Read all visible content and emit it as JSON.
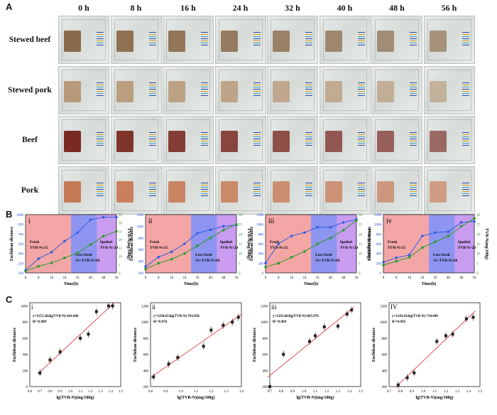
{
  "panel_a": {
    "letter": "A",
    "time_labels": [
      "0 h",
      "8 h",
      "16 h",
      "24 h",
      "32 h",
      "40 h",
      "48 h",
      "56 h"
    ],
    "row_labels": [
      "Stewed beef",
      "Stewed pork",
      "Beef",
      "Pork"
    ],
    "meat_colors": [
      "#8a6a4a",
      "#b89a7a",
      "#7a2a22",
      "#c77a55"
    ]
  },
  "panel_b": {
    "letter": "B"
  },
  "panel_c": {
    "letter": "C"
  },
  "chart_data": [
    {
      "type": "line",
      "panel": "B-i",
      "roman": "i",
      "xlabel": "Time(h)",
      "ylabel": "Euclidean distance",
      "ylabel2": "TVB-N(mg/100g)",
      "xticks": [
        "0",
        "8",
        "16",
        "24",
        "32",
        "40",
        "48",
        "56"
      ],
      "yticks": [
        "100",
        "250",
        "400",
        "550",
        "700",
        "850",
        "1000"
      ],
      "y2ticks": [
        "0",
        "5",
        "10",
        "15",
        "20",
        "25",
        "30",
        "35"
      ],
      "x": [
        0,
        8,
        16,
        24,
        32,
        40,
        48,
        56
      ],
      "series": [
        {
          "values": [
            140,
            320,
            420,
            590,
            720,
            920,
            960,
            960
          ]
        },
        {
          "values": [
            1,
            4,
            6,
            9,
            12,
            17,
            22,
            25
          ]
        }
      ],
      "zones": [
        "Fresh\nTVB-N≤15",
        "Less fresh\n15<TVB-N≤20",
        "Spoiled\nTVB-N>20"
      ]
    },
    {
      "type": "line",
      "panel": "B-ii",
      "roman": "ii",
      "xlabel": "Time(h)",
      "ylabel": "Euclidean distance",
      "ylabel2": "TVB-N(mg/100g)",
      "xticks": [
        "0",
        "8",
        "16",
        "24",
        "32",
        "40",
        "48",
        "56"
      ],
      "yticks": [
        "200",
        "400",
        "600",
        "800",
        "1000",
        "1200"
      ],
      "y2ticks": [
        "0",
        "5",
        "10",
        "15",
        "20",
        "25",
        "30"
      ],
      "x": [
        0,
        8,
        16,
        24,
        32,
        40,
        48,
        56
      ],
      "series": [
        {
          "values": [
            310,
            470,
            560,
            700,
            880,
            940,
            1000,
            1020
          ]
        },
        {
          "values": [
            2,
            5,
            7,
            10,
            14,
            18,
            22,
            25
          ]
        }
      ],
      "zones": [
        "Fresh\nTVB-N≤15",
        "Less fresh\n15<TVB-N≤20",
        "Spoiled\nTVB-N>20"
      ]
    },
    {
      "type": "line",
      "panel": "B-iii",
      "roman": "iii",
      "xlabel": "Time(h)",
      "ylabel": "Euclidean distance",
      "ylabel2": "TVB-N(mg/100g)",
      "xticks": [
        "0",
        "8",
        "16",
        "24",
        "32",
        "40",
        "48",
        "56"
      ],
      "yticks": [
        "0",
        "200",
        "400",
        "600",
        "800",
        "1000",
        "1200"
      ],
      "y2ticks": [
        "0",
        "5",
        "10",
        "15",
        "20",
        "25",
        "30"
      ],
      "x": [
        0,
        8,
        16,
        24,
        32,
        40,
        48,
        56
      ],
      "series": [
        {
          "values": [
            200,
            600,
            760,
            830,
            940,
            940,
            1040,
            1100
          ]
        },
        {
          "values": [
            3,
            5,
            8,
            11,
            15,
            18,
            22,
            27
          ]
        }
      ],
      "zones": [
        "Fresh\nTVB-N≤15",
        "Less fresh\n15<TVB-N≤20",
        "Spoiled\nTVB-N>20"
      ]
    },
    {
      "type": "line",
      "panel": "B-iv",
      "roman": "iv",
      "xlabel": "Time(h)",
      "ylabel": "Euclidean distance",
      "ylabel2": "TVB-N(mg/100g)",
      "xticks": [
        "0",
        "8",
        "16",
        "24",
        "32",
        "40",
        "48",
        "56"
      ],
      "yticks": [
        "0",
        "200",
        "400",
        "600",
        "800",
        "1000",
        "1200"
      ],
      "y2ticks": [
        "0",
        "5",
        "10",
        "15",
        "20",
        "25",
        "30"
      ],
      "x": [
        0,
        8,
        16,
        24,
        32,
        40,
        48,
        56
      ],
      "series": [
        {
          "values": [
            220,
            310,
            370,
            760,
            830,
            850,
            1040,
            1060
          ]
        },
        {
          "values": [
            4,
            6,
            8,
            13,
            16,
            19,
            24,
            28
          ]
        }
      ],
      "zones": [
        "Fresh\nTVB-N≤15",
        "Less fresh\n15<TVB-N≤20",
        "Spoiled\nTVB-N>20"
      ]
    },
    {
      "type": "scatter",
      "panel": "C-i",
      "roman": "i",
      "xlabel": "lg(TVB-N)(mg/100g)",
      "ylabel": "Euclidean distance",
      "equation": "y=1155.282lg(TVB-N)-641.866",
      "r2": "R²=0.989",
      "xticks": [
        "0.6",
        "0.7",
        "0.8",
        "0.9",
        "1.0",
        "1.1",
        "1.2",
        "1.3",
        "1.4",
        "1.5"
      ],
      "yticks": [
        "0",
        "200",
        "400",
        "600",
        "800",
        "1000"
      ],
      "x": [
        0.7,
        0.8,
        0.9,
        1.1,
        1.18,
        1.26,
        1.38,
        1.42
      ],
      "y": [
        170,
        330,
        430,
        600,
        650,
        930,
        1000,
        1000
      ]
    },
    {
      "type": "scatter",
      "panel": "C-ii",
      "roman": "ii",
      "xlabel": "lg(TVB-N)(mg/100g)",
      "ylabel": "Euclidean distance",
      "equation": "y=1294.652lg(TVB-N)-703.858",
      "r2": "R²=0.976",
      "xticks": [
        "0.8",
        "0.9",
        "1.0",
        "1.1",
        "1.2",
        "1.3",
        "1.4"
      ],
      "yticks": [
        "200",
        "400",
        "600",
        "800",
        "1000",
        "1200"
      ],
      "x": [
        0.82,
        0.92,
        0.98,
        1.15,
        1.2,
        1.28,
        1.34,
        1.38
      ],
      "y": [
        320,
        480,
        560,
        700,
        900,
        960,
        1000,
        1060
      ]
    },
    {
      "type": "scatter",
      "panel": "C-iii",
      "roman": "iii",
      "xlabel": "lg(TVB-N)(mg/100g)",
      "ylabel": "Euclidean distance",
      "equation": "y=1291.663lg(TVB-N)-665.970",
      "r2": "R²=0.969",
      "xticks": [
        "0.7",
        "0.8",
        "0.9",
        "1.0",
        "1.1",
        "1.2",
        "1.3",
        "1.4",
        "1.5"
      ],
      "yticks": [
        "200",
        "400",
        "600",
        "800",
        "1000",
        "1200"
      ],
      "x": [
        0.7,
        0.82,
        1.05,
        1.1,
        1.18,
        1.3,
        1.38,
        1.42
      ],
      "y": [
        200,
        600,
        760,
        830,
        940,
        950,
        1100,
        1150
      ]
    },
    {
      "type": "scatter",
      "panel": "C-iv",
      "roman": "IV",
      "xlabel": "lg(TVB-N)(mg/100g)",
      "ylabel": "Euclidean distance",
      "equation": "y=1243.432lg(TVB-N)-734.690",
      "r2": "R²=0.995",
      "xticks": [
        "0.7",
        "0.8",
        "0.9",
        "1.0",
        "1.1",
        "1.2",
        "1.3",
        "1.4",
        "1.5"
      ],
      "yticks": [
        "200",
        "400",
        "600",
        "800",
        "1000",
        "1200"
      ],
      "x": [
        0.78,
        0.86,
        0.92,
        1.12,
        1.2,
        1.26,
        1.38,
        1.44
      ],
      "y": [
        220,
        310,
        370,
        760,
        830,
        850,
        1040,
        1060
      ]
    }
  ]
}
